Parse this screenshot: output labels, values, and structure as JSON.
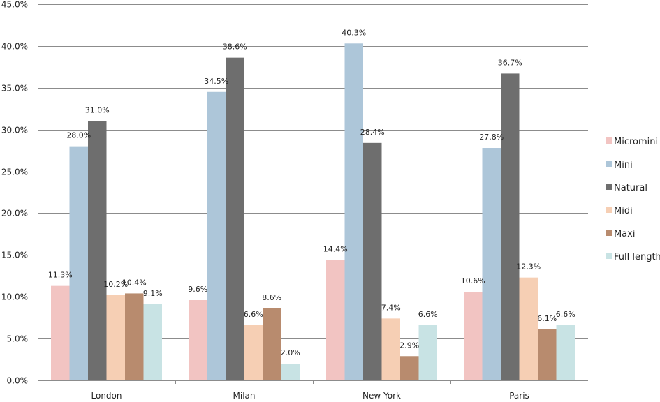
{
  "chart_data": {
    "type": "bar",
    "title": "",
    "xlabel": "",
    "ylabel": "",
    "categories": [
      "London",
      "Milan",
      "New York",
      "Paris"
    ],
    "ylim": [
      0,
      45
    ],
    "yticks": [
      "0.0%",
      "5.0%",
      "10.0%",
      "15.0%",
      "20.0%",
      "25.0%",
      "30.0%",
      "35.0%",
      "40.0%",
      "45.0%"
    ],
    "grid": true,
    "legend_position": "right",
    "series": [
      {
        "name": "Micromini",
        "color": "#f2c4c2",
        "values": [
          11.3,
          9.6,
          14.4,
          10.6
        ],
        "labels": [
          "11.3%",
          "9.6%",
          "14.4%",
          "10.6%"
        ]
      },
      {
        "name": "Mini",
        "color": "#adc6d9",
        "values": [
          28.0,
          34.5,
          40.3,
          27.8
        ],
        "labels": [
          "28.0%",
          "34.5%",
          "40.3%",
          "27.8%"
        ]
      },
      {
        "name": "Natural",
        "color": "#6e6e6e",
        "values": [
          31.0,
          38.6,
          28.4,
          36.7
        ],
        "labels": [
          "31.0%",
          "38.6%",
          "28.4%",
          "36.7%"
        ]
      },
      {
        "name": "Midi",
        "color": "#f6cfb4",
        "values": [
          10.2,
          6.6,
          7.4,
          12.3
        ],
        "labels": [
          "10.2%",
          "6.6%",
          "7.4%",
          "12.3%"
        ]
      },
      {
        "name": "Maxi",
        "color": "#b88b6e",
        "values": [
          10.4,
          8.6,
          2.9,
          6.1
        ],
        "labels": [
          "10.4%",
          "8.6%",
          "2.9%",
          "6.1%"
        ]
      },
      {
        "name": "Full length",
        "color": "#c8e3e4",
        "values": [
          9.1,
          2.0,
          6.6,
          6.6
        ],
        "labels": [
          "9.1%",
          "2.0%",
          "6.6%",
          "6.6%"
        ]
      }
    ]
  }
}
